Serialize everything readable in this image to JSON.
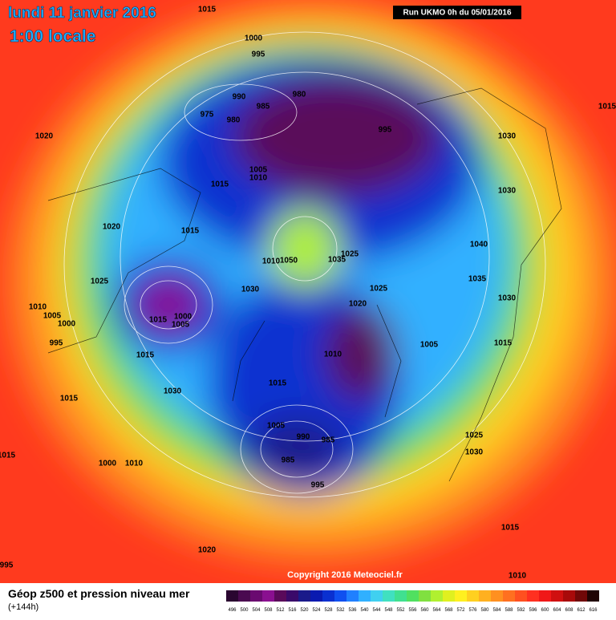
{
  "header": {
    "title": "lundi 11 janvier 2016",
    "subtitle": "1:00 locale",
    "run": "Run UKMO 0h du 05/01/2016"
  },
  "footer": {
    "copyright": "Copyright 2016 Meteociel.fr",
    "legend_title": "Géop z500 et pression niveau mer",
    "lead": "(+144h)"
  },
  "legend": {
    "values": [
      496,
      500,
      504,
      508,
      512,
      516,
      520,
      524,
      528,
      532,
      536,
      540,
      544,
      548,
      552,
      556,
      560,
      564,
      568,
      572,
      576,
      580,
      584,
      588,
      592,
      596,
      600,
      604,
      608,
      612,
      616
    ],
    "colors": [
      "#2a0630",
      "#4a0a50",
      "#6a0a70",
      "#8a1090",
      "#5a0a5a",
      "#3a0a6a",
      "#1a1a8a",
      "#0a1ab0",
      "#0a30d0",
      "#1050f0",
      "#2080ff",
      "#30b0ff",
      "#40d0f0",
      "#40e0c0",
      "#40e090",
      "#50e060",
      "#80e040",
      "#b0f030",
      "#e0f020",
      "#fff020",
      "#ffd020",
      "#ffb020",
      "#ff9020",
      "#ff7020",
      "#ff5020",
      "#ff3020",
      "#f01818",
      "#d01010",
      "#a80a0a",
      "#700808",
      "#200404"
    ]
  },
  "isobar_labels": [
    1015,
    1000,
    995,
    990,
    985,
    980,
    975,
    980,
    995,
    1030,
    1020,
    1005,
    1010,
    1015,
    1030,
    1020,
    1015,
    1040,
    1050,
    1010,
    1035,
    1025,
    1035,
    1025,
    1030,
    1025,
    1030,
    1020,
    1010,
    1005,
    1000,
    1015,
    1000,
    1005,
    995,
    1005,
    1015,
    1010,
    1015,
    1015,
    1030,
    1015,
    1005,
    990,
    985,
    1025,
    1030,
    1015,
    1000,
    1010,
    985,
    995,
    1015,
    1020,
    1010,
    995,
    1015
  ]
}
